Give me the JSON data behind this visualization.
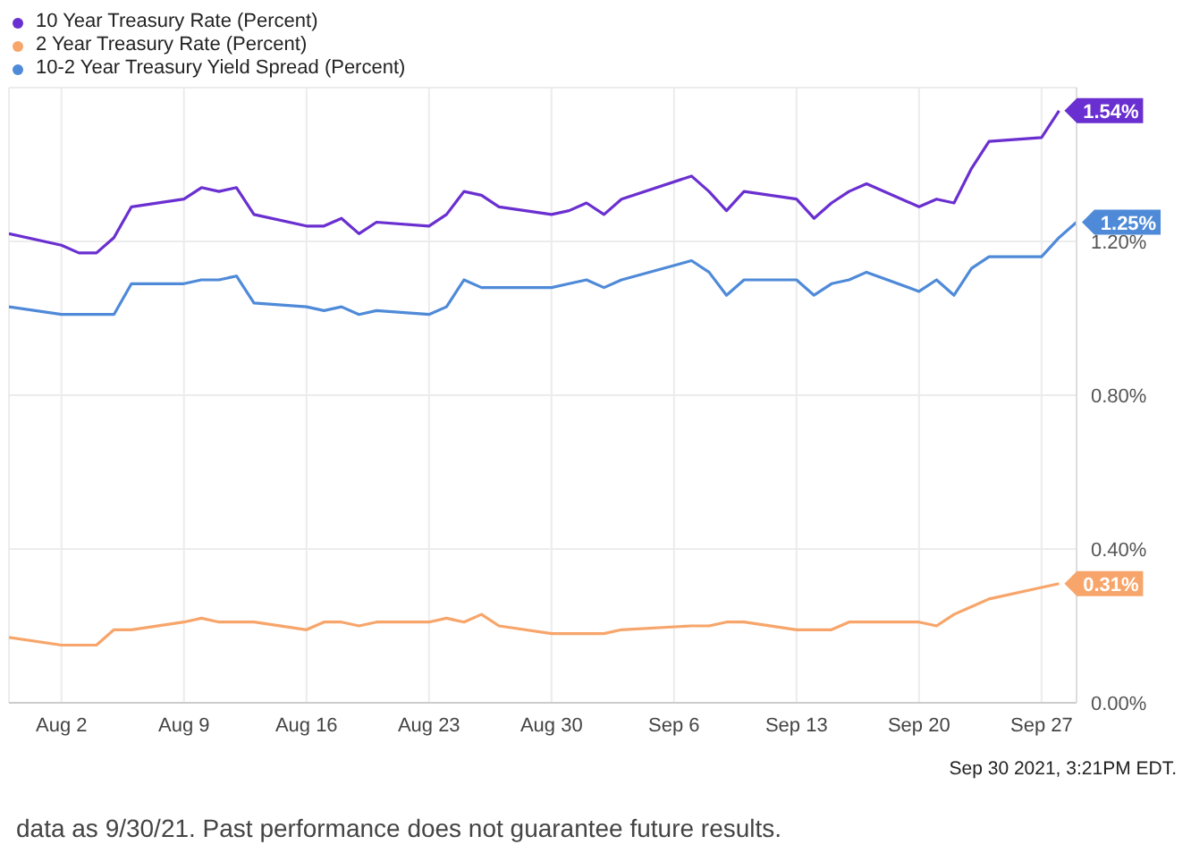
{
  "chart_data": {
    "type": "line",
    "x": [
      "2021-07-30",
      "2021-08-02",
      "2021-08-03",
      "2021-08-04",
      "2021-08-05",
      "2021-08-06",
      "2021-08-09",
      "2021-08-10",
      "2021-08-11",
      "2021-08-12",
      "2021-08-13",
      "2021-08-16",
      "2021-08-17",
      "2021-08-18",
      "2021-08-19",
      "2021-08-20",
      "2021-08-23",
      "2021-08-24",
      "2021-08-25",
      "2021-08-26",
      "2021-08-27",
      "2021-08-30",
      "2021-08-31",
      "2021-09-01",
      "2021-09-02",
      "2021-09-03",
      "2021-09-07",
      "2021-09-08",
      "2021-09-09",
      "2021-09-10",
      "2021-09-13",
      "2021-09-14",
      "2021-09-15",
      "2021-09-16",
      "2021-09-17",
      "2021-09-20",
      "2021-09-21",
      "2021-09-22",
      "2021-09-23",
      "2021-09-24",
      "2021-09-27",
      "2021-09-28",
      "2021-09-29"
    ],
    "series": [
      {
        "name": "10 Year Treasury Rate (Percent)",
        "color": "#6a2fd0",
        "values": [
          1.22,
          1.19,
          1.17,
          1.17,
          1.21,
          1.29,
          1.31,
          1.34,
          1.33,
          1.34,
          1.27,
          1.24,
          1.24,
          1.26,
          1.22,
          1.25,
          1.24,
          1.27,
          1.33,
          1.32,
          1.29,
          1.27,
          1.28,
          1.3,
          1.27,
          1.31,
          1.37,
          1.33,
          1.28,
          1.33,
          1.31,
          1.26,
          1.3,
          1.33,
          1.35,
          1.29,
          1.31,
          1.3,
          1.39,
          1.46,
          1.47,
          1.54,
          null
        ],
        "value_labels": [
          null,
          null,
          null,
          null,
          null,
          null,
          null,
          null,
          null,
          null,
          null,
          null,
          null,
          null,
          null,
          null,
          null,
          null,
          null,
          null,
          null,
          null,
          null,
          null,
          null,
          null,
          null,
          null,
          null,
          null,
          null,
          null,
          null,
          null,
          null,
          null,
          null,
          null,
          null,
          null,
          null,
          "1.54%",
          null
        ]
      },
      {
        "name": "2 Year Treasury Rate (Percent)",
        "color": "#f7a56a",
        "values": [
          0.17,
          0.15,
          0.15,
          0.15,
          0.19,
          0.19,
          0.21,
          0.22,
          0.21,
          0.21,
          0.21,
          0.19,
          0.21,
          0.21,
          0.2,
          0.21,
          0.21,
          0.22,
          0.21,
          0.23,
          0.2,
          0.18,
          0.18,
          0.18,
          0.18,
          0.19,
          0.2,
          0.2,
          0.21,
          0.21,
          0.19,
          0.19,
          0.19,
          0.21,
          0.21,
          0.21,
          0.2,
          0.23,
          0.25,
          0.27,
          0.3,
          0.31,
          null
        ],
        "value_labels": [
          null,
          null,
          null,
          null,
          null,
          null,
          null,
          null,
          null,
          null,
          null,
          null,
          null,
          null,
          null,
          null,
          null,
          null,
          null,
          null,
          null,
          null,
          null,
          null,
          null,
          null,
          null,
          null,
          null,
          null,
          null,
          null,
          null,
          null,
          null,
          null,
          null,
          null,
          null,
          null,
          null,
          "0.31%",
          null
        ]
      },
      {
        "name": "10-2 Year Treasury Yield Spread (Percent)",
        "color": "#4f8ad8",
        "values": [
          1.03,
          1.01,
          1.01,
          1.01,
          1.01,
          1.09,
          1.09,
          1.1,
          1.1,
          1.11,
          1.04,
          1.03,
          1.02,
          1.03,
          1.01,
          1.02,
          1.01,
          1.03,
          1.1,
          1.08,
          1.08,
          1.08,
          1.09,
          1.1,
          1.08,
          1.1,
          1.15,
          1.12,
          1.06,
          1.1,
          1.1,
          1.06,
          1.09,
          1.1,
          1.12,
          1.07,
          1.1,
          1.06,
          1.13,
          1.16,
          1.16,
          1.21,
          1.25
        ],
        "value_labels": [
          null,
          null,
          null,
          null,
          null,
          null,
          null,
          null,
          null,
          null,
          null,
          null,
          null,
          null,
          null,
          null,
          null,
          null,
          null,
          null,
          null,
          null,
          null,
          null,
          null,
          null,
          null,
          null,
          null,
          null,
          null,
          null,
          null,
          null,
          null,
          null,
          null,
          null,
          null,
          null,
          null,
          null,
          "1.25%"
        ]
      }
    ],
    "xlim": [
      "2021-07-30",
      "2021-09-29"
    ],
    "xticks": [
      {
        "value": "2021-08-02",
        "label": "Aug 2"
      },
      {
        "value": "2021-08-09",
        "label": "Aug 9"
      },
      {
        "value": "2021-08-16",
        "label": "Aug 16"
      },
      {
        "value": "2021-08-23",
        "label": "Aug 23"
      },
      {
        "value": "2021-08-30",
        "label": "Aug 30"
      },
      {
        "value": "2021-09-06",
        "label": "Sep 6"
      },
      {
        "value": "2021-09-13",
        "label": "Sep 13"
      },
      {
        "value": "2021-09-20",
        "label": "Sep 20"
      },
      {
        "value": "2021-09-27",
        "label": "Sep 27"
      }
    ],
    "ylim": [
      0,
      1.6
    ],
    "yticks": [
      {
        "value": 0,
        "label": "0.00%"
      },
      {
        "value": 0.4,
        "label": "0.40%"
      },
      {
        "value": 0.8,
        "label": "0.80%"
      },
      {
        "value": 1.2,
        "label": "1.20%"
      }
    ],
    "grid": true,
    "legend": "top left",
    "marker": "none",
    "line_style": "solid",
    "annotations": [
      "Sep 30 2021, 3:21PM EDT.",
      "data as 9/30/21. Past performance does not guarantee future results."
    ]
  }
}
